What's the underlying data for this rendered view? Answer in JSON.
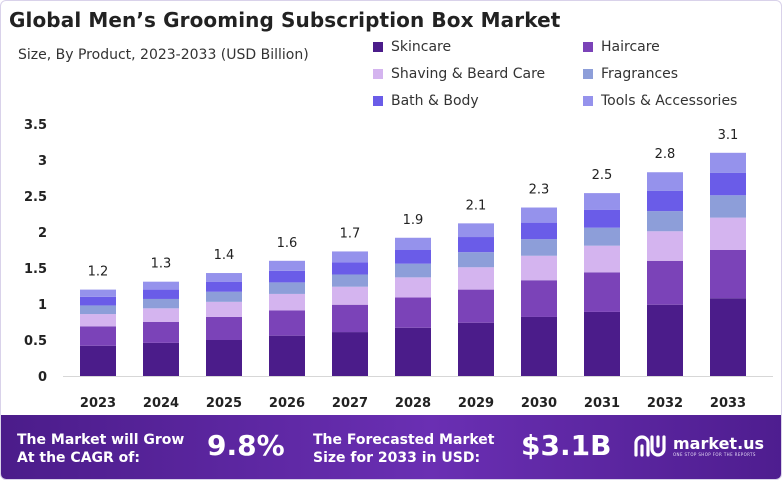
{
  "header": {
    "title": "Global Men’s Grooming Subscription Box Market",
    "subtitle": "Size, By Product, 2023-2033 (USD Billion)"
  },
  "chart_data": {
    "type": "bar",
    "stacked": true,
    "categories": [
      "2023",
      "2024",
      "2025",
      "2026",
      "2027",
      "2028",
      "2029",
      "2030",
      "2031",
      "2032",
      "2033"
    ],
    "totals_labels": [
      "1.2",
      "1.3",
      "1.4",
      "1.6",
      "1.7",
      "1.9",
      "2.1",
      "2.3",
      "2.5",
      "2.8",
      "3.1"
    ],
    "series": [
      {
        "name": "Skincare",
        "color": "#4b1c8a",
        "values": [
          0.42,
          0.46,
          0.5,
          0.56,
          0.61,
          0.67,
          0.74,
          0.82,
          0.89,
          0.99,
          1.08
        ]
      },
      {
        "name": "Haircare",
        "color": "#7b43b8",
        "values": [
          0.27,
          0.29,
          0.32,
          0.35,
          0.38,
          0.42,
          0.46,
          0.51,
          0.55,
          0.61,
          0.67
        ]
      },
      {
        "name": "Shaving & Beard Care",
        "color": "#d4b4ef",
        "values": [
          0.17,
          0.19,
          0.21,
          0.23,
          0.25,
          0.28,
          0.31,
          0.34,
          0.37,
          0.41,
          0.45
        ]
      },
      {
        "name": "Fragrances",
        "color": "#8d9ed9",
        "values": [
          0.12,
          0.13,
          0.14,
          0.16,
          0.17,
          0.19,
          0.21,
          0.23,
          0.25,
          0.28,
          0.31
        ]
      },
      {
        "name": "Bath & Body",
        "color": "#6a5ce8",
        "values": [
          0.12,
          0.13,
          0.14,
          0.16,
          0.17,
          0.19,
          0.21,
          0.23,
          0.25,
          0.28,
          0.31
        ]
      },
      {
        "name": "Tools & Accessories",
        "color": "#9592ec",
        "values": [
          0.1,
          0.11,
          0.12,
          0.14,
          0.15,
          0.17,
          0.19,
          0.21,
          0.23,
          0.26,
          0.28
        ]
      }
    ],
    "title": "Global Men’s Grooming Subscription Box Market",
    "xlabel": "",
    "ylabel": "",
    "yticks": [
      "0",
      "0.5",
      "1",
      "1.5",
      "2",
      "2.5",
      "3",
      "3.5"
    ],
    "ylim": [
      0,
      3.5
    ],
    "grid": false,
    "legend_position": "top-right"
  },
  "footer": {
    "cagr_label_line1": "The Market will Grow",
    "cagr_label_line2": "At the CAGR of:",
    "cagr_value": "9.8%",
    "forecast_label_line1": "The Forecasted Market",
    "forecast_label_line2": "Size for 2033 in USD:",
    "forecast_value": "$3.1B",
    "brand_name": "market.us",
    "brand_tagline": "ONE STOP SHOP FOR THE REPORTS"
  }
}
